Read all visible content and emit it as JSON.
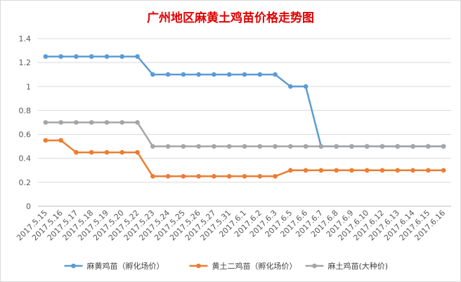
{
  "chart_data": {
    "type": "line",
    "title": "广州地区麻黄土鸡苗价格走势图",
    "xlabel": "",
    "ylabel": "",
    "ylim": [
      0,
      1.4
    ],
    "yticks": [
      "0",
      "0.2",
      "0.4",
      "0.6",
      "0.8",
      "1",
      "1.2",
      "1.4"
    ],
    "grid": true,
    "legend_position": "bottom",
    "categories": [
      "2017.5.15",
      "2017.5.16",
      "2017.5.17",
      "2017.5.18",
      "2017.5.19",
      "2017.5.20",
      "2017.5.22",
      "2017.5.23",
      "2017.5.24",
      "2017.5.25",
      "2017.5.26",
      "2017.5.27",
      "2017.5.31",
      "2017.6.1",
      "2017.6.2",
      "2017.6.3",
      "2017.6.5",
      "2017.6.6",
      "2017.6.7",
      "2017.6.8",
      "2017.6.9",
      "2017.6.10",
      "2017.6.12",
      "2017.6.13",
      "2017.6.14",
      "2017.6.15",
      "2017.6.16"
    ],
    "series": [
      {
        "name": "麻黄鸡苗（孵化场价）",
        "color": "#5b9bd5",
        "values": [
          1.25,
          1.25,
          1.25,
          1.25,
          1.25,
          1.25,
          1.25,
          1.1,
          1.1,
          1.1,
          1.1,
          1.1,
          1.1,
          1.1,
          1.1,
          1.1,
          1.0,
          1.0,
          0.5,
          0.5,
          0.5,
          0.5,
          0.5,
          0.5,
          0.5,
          0.5,
          0.5
        ]
      },
      {
        "name": "黄土二鸡苗（孵化场价）",
        "color": "#ed7d31",
        "values": [
          0.55,
          0.55,
          0.45,
          0.45,
          0.45,
          0.45,
          0.45,
          0.25,
          0.25,
          0.25,
          0.25,
          0.25,
          0.25,
          0.25,
          0.25,
          0.25,
          0.3,
          0.3,
          0.3,
          0.3,
          0.3,
          0.3,
          0.3,
          0.3,
          0.3,
          0.3,
          0.3
        ]
      },
      {
        "name": "麻土鸡苗(大种价)",
        "color": "#a5a5a5",
        "values": [
          0.7,
          0.7,
          0.7,
          0.7,
          0.7,
          0.7,
          0.7,
          0.5,
          0.5,
          0.5,
          0.5,
          0.5,
          0.5,
          0.5,
          0.5,
          0.5,
          0.5,
          0.5,
          0.5,
          0.5,
          0.5,
          0.5,
          0.5,
          0.5,
          0.5,
          0.5,
          0.5
        ]
      }
    ]
  }
}
